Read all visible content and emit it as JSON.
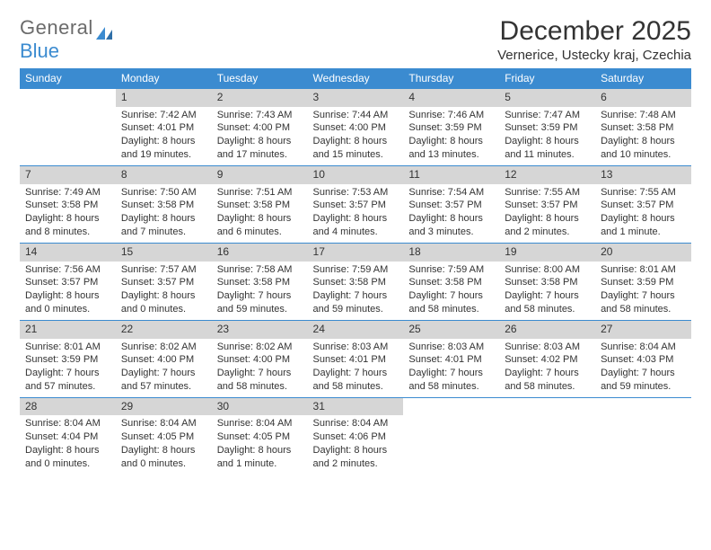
{
  "brand": {
    "word1": "General",
    "word2": "Blue"
  },
  "title": "December 2025",
  "location": "Vernerice, Ustecky kraj, Czechia",
  "colors": {
    "header_bg": "#3b8bd0",
    "header_text": "#ffffff",
    "daynum_bg": "#d6d6d6",
    "text": "#333333",
    "rule": "#3b8bd0",
    "page_bg": "#ffffff",
    "logo_gray": "#6b6b6b",
    "logo_blue": "#3b8bd0"
  },
  "week_header": [
    "Sunday",
    "Monday",
    "Tuesday",
    "Wednesday",
    "Thursday",
    "Friday",
    "Saturday"
  ],
  "weeks": [
    [
      {
        "day": "",
        "sunrise": "",
        "sunset": "",
        "daylight": ""
      },
      {
        "day": "1",
        "sunrise": "Sunrise: 7:42 AM",
        "sunset": "Sunset: 4:01 PM",
        "daylight": "Daylight: 8 hours and 19 minutes."
      },
      {
        "day": "2",
        "sunrise": "Sunrise: 7:43 AM",
        "sunset": "Sunset: 4:00 PM",
        "daylight": "Daylight: 8 hours and 17 minutes."
      },
      {
        "day": "3",
        "sunrise": "Sunrise: 7:44 AM",
        "sunset": "Sunset: 4:00 PM",
        "daylight": "Daylight: 8 hours and 15 minutes."
      },
      {
        "day": "4",
        "sunrise": "Sunrise: 7:46 AM",
        "sunset": "Sunset: 3:59 PM",
        "daylight": "Daylight: 8 hours and 13 minutes."
      },
      {
        "day": "5",
        "sunrise": "Sunrise: 7:47 AM",
        "sunset": "Sunset: 3:59 PM",
        "daylight": "Daylight: 8 hours and 11 minutes."
      },
      {
        "day": "6",
        "sunrise": "Sunrise: 7:48 AM",
        "sunset": "Sunset: 3:58 PM",
        "daylight": "Daylight: 8 hours and 10 minutes."
      }
    ],
    [
      {
        "day": "7",
        "sunrise": "Sunrise: 7:49 AM",
        "sunset": "Sunset: 3:58 PM",
        "daylight": "Daylight: 8 hours and 8 minutes."
      },
      {
        "day": "8",
        "sunrise": "Sunrise: 7:50 AM",
        "sunset": "Sunset: 3:58 PM",
        "daylight": "Daylight: 8 hours and 7 minutes."
      },
      {
        "day": "9",
        "sunrise": "Sunrise: 7:51 AM",
        "sunset": "Sunset: 3:58 PM",
        "daylight": "Daylight: 8 hours and 6 minutes."
      },
      {
        "day": "10",
        "sunrise": "Sunrise: 7:53 AM",
        "sunset": "Sunset: 3:57 PM",
        "daylight": "Daylight: 8 hours and 4 minutes."
      },
      {
        "day": "11",
        "sunrise": "Sunrise: 7:54 AM",
        "sunset": "Sunset: 3:57 PM",
        "daylight": "Daylight: 8 hours and 3 minutes."
      },
      {
        "day": "12",
        "sunrise": "Sunrise: 7:55 AM",
        "sunset": "Sunset: 3:57 PM",
        "daylight": "Daylight: 8 hours and 2 minutes."
      },
      {
        "day": "13",
        "sunrise": "Sunrise: 7:55 AM",
        "sunset": "Sunset: 3:57 PM",
        "daylight": "Daylight: 8 hours and 1 minute."
      }
    ],
    [
      {
        "day": "14",
        "sunrise": "Sunrise: 7:56 AM",
        "sunset": "Sunset: 3:57 PM",
        "daylight": "Daylight: 8 hours and 0 minutes."
      },
      {
        "day": "15",
        "sunrise": "Sunrise: 7:57 AM",
        "sunset": "Sunset: 3:57 PM",
        "daylight": "Daylight: 8 hours and 0 minutes."
      },
      {
        "day": "16",
        "sunrise": "Sunrise: 7:58 AM",
        "sunset": "Sunset: 3:58 PM",
        "daylight": "Daylight: 7 hours and 59 minutes."
      },
      {
        "day": "17",
        "sunrise": "Sunrise: 7:59 AM",
        "sunset": "Sunset: 3:58 PM",
        "daylight": "Daylight: 7 hours and 59 minutes."
      },
      {
        "day": "18",
        "sunrise": "Sunrise: 7:59 AM",
        "sunset": "Sunset: 3:58 PM",
        "daylight": "Daylight: 7 hours and 58 minutes."
      },
      {
        "day": "19",
        "sunrise": "Sunrise: 8:00 AM",
        "sunset": "Sunset: 3:58 PM",
        "daylight": "Daylight: 7 hours and 58 minutes."
      },
      {
        "day": "20",
        "sunrise": "Sunrise: 8:01 AM",
        "sunset": "Sunset: 3:59 PM",
        "daylight": "Daylight: 7 hours and 58 minutes."
      }
    ],
    [
      {
        "day": "21",
        "sunrise": "Sunrise: 8:01 AM",
        "sunset": "Sunset: 3:59 PM",
        "daylight": "Daylight: 7 hours and 57 minutes."
      },
      {
        "day": "22",
        "sunrise": "Sunrise: 8:02 AM",
        "sunset": "Sunset: 4:00 PM",
        "daylight": "Daylight: 7 hours and 57 minutes."
      },
      {
        "day": "23",
        "sunrise": "Sunrise: 8:02 AM",
        "sunset": "Sunset: 4:00 PM",
        "daylight": "Daylight: 7 hours and 58 minutes."
      },
      {
        "day": "24",
        "sunrise": "Sunrise: 8:03 AM",
        "sunset": "Sunset: 4:01 PM",
        "daylight": "Daylight: 7 hours and 58 minutes."
      },
      {
        "day": "25",
        "sunrise": "Sunrise: 8:03 AM",
        "sunset": "Sunset: 4:01 PM",
        "daylight": "Daylight: 7 hours and 58 minutes."
      },
      {
        "day": "26",
        "sunrise": "Sunrise: 8:03 AM",
        "sunset": "Sunset: 4:02 PM",
        "daylight": "Daylight: 7 hours and 58 minutes."
      },
      {
        "day": "27",
        "sunrise": "Sunrise: 8:04 AM",
        "sunset": "Sunset: 4:03 PM",
        "daylight": "Daylight: 7 hours and 59 minutes."
      }
    ],
    [
      {
        "day": "28",
        "sunrise": "Sunrise: 8:04 AM",
        "sunset": "Sunset: 4:04 PM",
        "daylight": "Daylight: 8 hours and 0 minutes."
      },
      {
        "day": "29",
        "sunrise": "Sunrise: 8:04 AM",
        "sunset": "Sunset: 4:05 PM",
        "daylight": "Daylight: 8 hours and 0 minutes."
      },
      {
        "day": "30",
        "sunrise": "Sunrise: 8:04 AM",
        "sunset": "Sunset: 4:05 PM",
        "daylight": "Daylight: 8 hours and 1 minute."
      },
      {
        "day": "31",
        "sunrise": "Sunrise: 8:04 AM",
        "sunset": "Sunset: 4:06 PM",
        "daylight": "Daylight: 8 hours and 2 minutes."
      },
      {
        "day": "",
        "sunrise": "",
        "sunset": "",
        "daylight": ""
      },
      {
        "day": "",
        "sunrise": "",
        "sunset": "",
        "daylight": ""
      },
      {
        "day": "",
        "sunrise": "",
        "sunset": "",
        "daylight": ""
      }
    ]
  ]
}
